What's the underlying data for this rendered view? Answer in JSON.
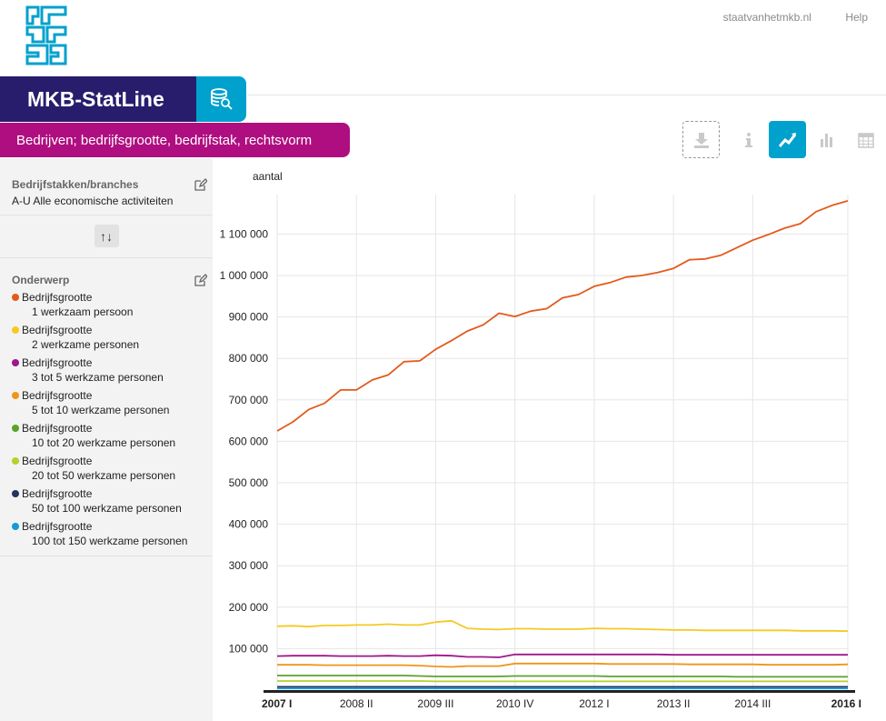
{
  "header": {
    "links": [
      "staatvanhetmkb.nl",
      "Help"
    ],
    "brand": "MKB-StatLine",
    "table_title": "Bedrijven; bedrijfsgrootte, bedrijfstak, rechtsvorm"
  },
  "toolbar": {
    "buttons": [
      "download-icon",
      "info-icon",
      "line-chart-icon",
      "bar-chart-icon",
      "table-icon"
    ],
    "active": "line-chart-icon"
  },
  "sidebar": {
    "section1": {
      "title": "Bedrijfstakken/branches",
      "value": "A-U Alle economische activiteiten"
    },
    "swap_label": "↑↓",
    "section2": {
      "title": "Onderwerp",
      "items": [
        {
          "line1": "Bedrijfsgrootte",
          "line2": "1 werkzaam persoon",
          "color": "#e35a1b"
        },
        {
          "line1": "Bedrijfsgrootte",
          "line2": "2 werkzame personen",
          "color": "#f6c924"
        },
        {
          "line1": "Bedrijfsgrootte",
          "line2": "3 tot 5 werkzame personen",
          "color": "#a0168c"
        },
        {
          "line1": "Bedrijfsgrootte",
          "line2": "5 tot 10 werkzame personen",
          "color": "#f0941c"
        },
        {
          "line1": "Bedrijfsgrootte",
          "line2": "10 tot 20 werkzame personen",
          "color": "#5ba22c"
        },
        {
          "line1": "Bedrijfsgrootte",
          "line2": "20 tot 50 werkzame personen",
          "color": "#b5d12b"
        },
        {
          "line1": "Bedrijfsgrootte",
          "line2": "50 tot 100 werkzame personen",
          "color": "#25335f"
        },
        {
          "line1": "Bedrijfsgrootte",
          "line2": "100 tot 150 werkzame personen",
          "color": "#1699d6"
        }
      ]
    }
  },
  "chart_data": {
    "type": "line",
    "ylabel": "aantal",
    "ylim": [
      0,
      1200000
    ],
    "yticks": [
      100000,
      200000,
      300000,
      400000,
      500000,
      600000,
      700000,
      800000,
      900000,
      1000000,
      1100000
    ],
    "ytick_labels": [
      "100 000",
      "200 000",
      "300 000",
      "400 000",
      "500 000",
      "600 000",
      "700 000",
      "800 000",
      "900 000",
      "1 000 000",
      "1 100 000"
    ],
    "x_labels": [
      {
        "i": 0,
        "label": "2007 I",
        "bold": true
      },
      {
        "i": 5,
        "label": "2008 II",
        "bold": false
      },
      {
        "i": 10,
        "label": "2009 III",
        "bold": false
      },
      {
        "i": 15,
        "label": "2010 IV",
        "bold": false
      },
      {
        "i": 20,
        "label": "2012 I",
        "bold": false
      },
      {
        "i": 25,
        "label": "2013 II",
        "bold": false
      },
      {
        "i": 30,
        "label": "2014 III",
        "bold": false
      },
      {
        "i": 36,
        "label": "2016 I",
        "bold": true
      }
    ],
    "x_count": 37,
    "series": [
      {
        "name": "1 werkzaam persoon",
        "color": "#e35a1b",
        "values": [
          625000,
          647000,
          677000,
          692000,
          724000,
          724000,
          748000,
          760000,
          792000,
          794000,
          822000,
          843000,
          866000,
          881000,
          909000,
          901000,
          914000,
          920000,
          946000,
          954000,
          974000,
          983000,
          996000,
          1000000,
          1007000,
          1017000,
          1038000,
          1040000,
          1049000,
          1067000,
          1085000,
          1099000,
          1114000,
          1125000,
          1154000,
          1169000,
          1180000
        ]
      },
      {
        "name": "2 werkzame personen",
        "color": "#f6c924",
        "values": [
          154000,
          155000,
          153000,
          156000,
          156000,
          157000,
          157000,
          159000,
          157000,
          157000,
          164000,
          167000,
          149000,
          147000,
          146000,
          148000,
          148000,
          147000,
          147000,
          147000,
          149000,
          148000,
          148000,
          147000,
          146000,
          145000,
          145000,
          144000,
          144000,
          144000,
          144000,
          144000,
          144000,
          143000,
          143000,
          143000,
          142000
        ]
      },
      {
        "name": "3 tot 5 werkzame personen",
        "color": "#a0168c",
        "values": [
          82000,
          83000,
          83000,
          83000,
          82000,
          82000,
          82000,
          83000,
          82000,
          82000,
          84000,
          83000,
          80000,
          80000,
          79000,
          86000,
          86000,
          86000,
          86000,
          86000,
          86000,
          86000,
          86000,
          86000,
          86000,
          85000,
          85000,
          85000,
          85000,
          85000,
          85000,
          85000,
          85000,
          85000,
          85000,
          85000,
          85000
        ]
      },
      {
        "name": "5 tot 10 werkzame personen",
        "color": "#f0941c",
        "values": [
          61000,
          61000,
          61000,
          60000,
          60000,
          60000,
          60000,
          60000,
          60000,
          59000,
          57000,
          56000,
          58000,
          58000,
          58000,
          64000,
          64000,
          64000,
          64000,
          64000,
          64000,
          63000,
          63000,
          63000,
          63000,
          63000,
          62000,
          62000,
          62000,
          62000,
          62000,
          61000,
          61000,
          61000,
          61000,
          61000,
          62000
        ]
      },
      {
        "name": "10 tot 20 werkzame personen",
        "color": "#5ba22c",
        "values": [
          35000,
          35000,
          35000,
          35000,
          35000,
          35000,
          35000,
          35000,
          35000,
          34000,
          33000,
          33000,
          33000,
          33000,
          33000,
          34000,
          34000,
          34000,
          34000,
          34000,
          34000,
          33000,
          33000,
          33000,
          33000,
          33000,
          33000,
          33000,
          33000,
          32000,
          32000,
          32000,
          32000,
          32000,
          32000,
          32000,
          32000
        ]
      },
      {
        "name": "20 tot 50 werkzame personen",
        "color": "#b5d12b",
        "values": [
          22000,
          22000,
          22000,
          22000,
          22000,
          22000,
          22000,
          22000,
          22000,
          22000,
          21000,
          21000,
          21000,
          21000,
          21000,
          21000,
          21000,
          21000,
          21000,
          21000,
          21000,
          21000,
          21000,
          21000,
          21000,
          21000,
          21000,
          21000,
          21000,
          21000,
          21000,
          21000,
          21000,
          21000,
          21000,
          21000,
          21000
        ]
      },
      {
        "name": "50 tot 100 werkzame personen",
        "color": "#25335f",
        "values": [
          8000,
          8000,
          8000,
          8000,
          8000,
          8000,
          8000,
          8000,
          8000,
          8000,
          8000,
          8000,
          8000,
          8000,
          8000,
          8000,
          8000,
          8000,
          8000,
          8000,
          8000,
          8000,
          8000,
          8000,
          8000,
          8000,
          8000,
          8000,
          8000,
          8000,
          8000,
          8000,
          8000,
          8000,
          8000,
          8000,
          8000
        ]
      },
      {
        "name": "100 tot 150 werkzame personen",
        "color": "#1699d6",
        "values": [
          4000,
          4000,
          4000,
          4000,
          4000,
          4000,
          4000,
          4000,
          4000,
          4000,
          4000,
          4000,
          4000,
          4000,
          4000,
          4000,
          4000,
          4000,
          4000,
          4000,
          4000,
          4000,
          4000,
          4000,
          4000,
          4000,
          4000,
          4000,
          4000,
          4000,
          4000,
          4000,
          4000,
          4000,
          4000,
          4000,
          4000
        ]
      }
    ]
  }
}
